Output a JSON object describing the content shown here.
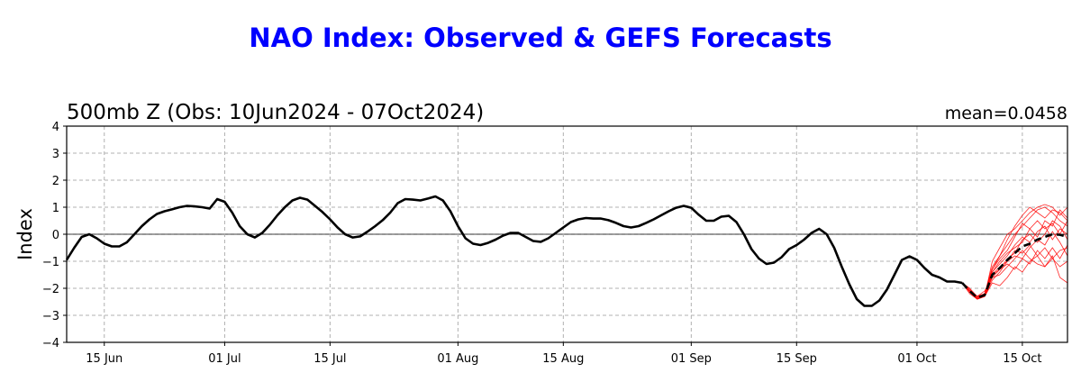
{
  "chart_data": {
    "type": "line",
    "title": "NAO Index: Observed & GEFS Forecasts",
    "subtitle": "500mb Z (Obs: 10Jun2024 - 07Oct2024)",
    "mean_label": "mean=0.0458",
    "ylabel": "Index",
    "xlabel": "",
    "ylim": [
      -4,
      4
    ],
    "xlim": [
      "2024-06-10",
      "2024-10-21"
    ],
    "yticks": [
      "4",
      "3",
      "2",
      "1",
      "0",
      "−1",
      "−2",
      "−3",
      "−4"
    ],
    "ytick_values": [
      4,
      3,
      2,
      1,
      0,
      -1,
      -2,
      -3,
      -4
    ],
    "xticks": [
      {
        "label": "15 Jun",
        "date": "2024-06-15"
      },
      {
        "label": "01 Jul",
        "date": "2024-07-01"
      },
      {
        "label": "15 Jul",
        "date": "2024-07-15"
      },
      {
        "label": "01 Aug",
        "date": "2024-08-01"
      },
      {
        "label": "15 Aug",
        "date": "2024-08-15"
      },
      {
        "label": "01 Sep",
        "date": "2024-09-01"
      },
      {
        "label": "15 Sep",
        "date": "2024-09-15"
      },
      {
        "label": "01 Oct",
        "date": "2024-10-01"
      },
      {
        "label": "15 Oct",
        "date": "2024-10-15"
      }
    ],
    "grid": true,
    "colors": {
      "title": "#0000ff",
      "observed": "#000000",
      "members": "#ff0000",
      "mean": "#000000",
      "grid": "#b0b0b0"
    },
    "observed": {
      "start": "2024-06-10",
      "values": [
        -0.95,
        -0.5,
        -0.1,
        0.0,
        -0.15,
        -0.35,
        -0.45,
        -0.45,
        -0.3,
        0.0,
        0.3,
        0.55,
        0.75,
        0.85,
        0.92,
        1.0,
        1.05,
        1.03,
        1.0,
        0.95,
        1.3,
        1.2,
        0.8,
        0.3,
        0.0,
        -0.12,
        0.05,
        0.35,
        0.7,
        1.0,
        1.25,
        1.35,
        1.28,
        1.05,
        0.82,
        0.55,
        0.25,
        0.0,
        -0.12,
        -0.08,
        0.1,
        0.3,
        0.52,
        0.8,
        1.15,
        1.3,
        1.28,
        1.25,
        1.32,
        1.4,
        1.25,
        0.85,
        0.3,
        -0.15,
        -0.35,
        -0.4,
        -0.32,
        -0.2,
        -0.05,
        0.05,
        0.05,
        -0.1,
        -0.25,
        -0.28,
        -0.15,
        0.05,
        0.25,
        0.45,
        0.55,
        0.6,
        0.58,
        0.58,
        0.52,
        0.42,
        0.3,
        0.25,
        0.3,
        0.42,
        0.55,
        0.7,
        0.85,
        0.98,
        1.05,
        0.98,
        0.72,
        0.5,
        0.5,
        0.65,
        0.68,
        0.45,
        0.0,
        -0.55,
        -0.9,
        -1.1,
        -1.05,
        -0.85,
        -0.55,
        -0.4,
        -0.2,
        0.05,
        0.2,
        0.0,
        -0.5,
        -1.2,
        -1.85,
        -2.4,
        -2.65,
        -2.65,
        -2.45,
        -2.05,
        -1.5,
        -0.95,
        -0.82,
        -0.95,
        -1.25,
        -1.5,
        -1.6,
        -1.75,
        -1.75,
        -1.8
      ]
    },
    "forecast": {
      "start": "2024-10-07",
      "mean": [
        -1.8,
        -2.1,
        -2.35,
        -2.25,
        -1.5,
        -1.25,
        -0.95,
        -0.7,
        -0.45,
        -0.35,
        -0.2,
        -0.1,
        0.0,
        -0.02,
        -0.1
      ],
      "members": [
        [
          -1.8,
          -2.1,
          -2.4,
          -2.2,
          -1.3,
          -0.8,
          -0.4,
          0.0,
          0.3,
          0.6,
          0.9,
          1.0,
          0.8,
          0.5,
          0.3
        ],
        [
          -1.8,
          -2.0,
          -2.3,
          -2.1,
          -1.6,
          -1.5,
          -1.2,
          -0.9,
          -0.6,
          -0.9,
          -1.1,
          -1.2,
          -0.8,
          -1.6,
          -1.8
        ],
        [
          -1.8,
          -2.2,
          -2.4,
          -2.3,
          -1.0,
          -0.5,
          0.0,
          0.2,
          0.5,
          0.8,
          1.0,
          1.1,
          1.0,
          0.7,
          1.0
        ],
        [
          -1.8,
          -2.1,
          -2.3,
          -2.3,
          -1.8,
          -1.9,
          -1.6,
          -1.2,
          -1.4,
          -1.0,
          -0.8,
          -1.2,
          -0.9,
          -0.6,
          -0.5
        ],
        [
          -1.8,
          -2.1,
          -2.35,
          -2.2,
          -1.4,
          -1.0,
          -0.7,
          -0.5,
          -0.3,
          0.2,
          0.5,
          0.2,
          0.4,
          0.0,
          0.5
        ],
        [
          -1.8,
          -2.0,
          -2.4,
          -2.25,
          -1.5,
          -1.2,
          -1.0,
          -0.8,
          -0.9,
          -0.5,
          -0.2,
          -0.4,
          0.1,
          -0.3,
          -0.8
        ],
        [
          -1.8,
          -2.1,
          -2.3,
          -2.2,
          -1.2,
          -0.8,
          -0.2,
          0.3,
          0.7,
          1.0,
          0.8,
          0.6,
          0.9,
          0.8,
          0.5
        ],
        [
          -1.8,
          -2.05,
          -2.4,
          -2.3,
          -1.6,
          -1.3,
          -1.1,
          -1.3,
          -0.9,
          -1.1,
          -0.6,
          -0.9,
          -0.5,
          -0.9,
          -0.4
        ],
        [
          -1.8,
          -2.1,
          -2.35,
          -2.2,
          -1.4,
          -1.1,
          -0.8,
          -0.4,
          -0.1,
          -0.3,
          0.1,
          0.3,
          -0.2,
          0.2,
          0.0
        ],
        [
          -1.8,
          -2.15,
          -2.4,
          -2.3,
          -1.7,
          -1.4,
          -1.0,
          -0.6,
          -0.7,
          -0.4,
          -0.8,
          -0.5,
          -0.9,
          -1.2,
          -1.0
        ],
        [
          -1.8,
          -2.1,
          -2.3,
          -2.2,
          -1.3,
          -0.9,
          -0.6,
          -0.1,
          0.4,
          0.2,
          -0.1,
          0.5,
          0.3,
          0.9,
          0.6
        ],
        [
          -1.8,
          -2.1,
          -2.35,
          -2.25,
          -1.5,
          -1.3,
          -0.9,
          -0.7,
          -0.2,
          0.0,
          -0.3,
          0.0,
          0.5,
          0.3,
          -0.2
        ]
      ]
    }
  }
}
